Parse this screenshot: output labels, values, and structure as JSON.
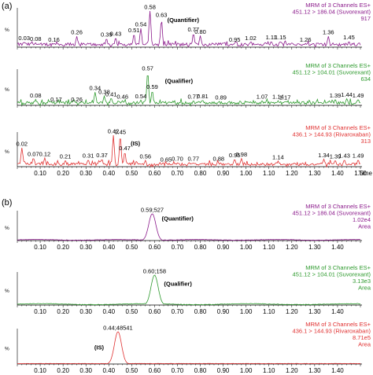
{
  "panel_labels": [
    "(a)",
    "(b)"
  ],
  "chart_data": [
    {
      "type": "line",
      "panel": "(a)",
      "annotation": "(Quantifier)",
      "color": "#8b1a8b",
      "header": [
        "MRM of 3 Channels ES+",
        "451.12 > 186.04 (Suvorexant)",
        "917"
      ],
      "ylabel": "%",
      "xlabel": "",
      "xlim": [
        0.0,
        1.5
      ],
      "ylim": [
        0,
        100
      ],
      "xticks": [],
      "peaks": [
        {
          "x": 0.03,
          "y": 14,
          "label": "0.03"
        },
        {
          "x": 0.08,
          "y": 12,
          "label": "0.08"
        },
        {
          "x": 0.16,
          "y": 10,
          "label": "0.16"
        },
        {
          "x": 0.26,
          "y": 30,
          "label": "0.26"
        },
        {
          "x": 0.39,
          "y": 24,
          "label": "0.39"
        },
        {
          "x": 0.43,
          "y": 26,
          "label": "0.43"
        },
        {
          "x": 0.51,
          "y": 36,
          "label": "0.51"
        },
        {
          "x": 0.54,
          "y": 52,
          "label": "0.54"
        },
        {
          "x": 0.58,
          "y": 100,
          "label": "0.58"
        },
        {
          "x": 0.63,
          "y": 78,
          "label": "0.63"
        },
        {
          "x": 0.77,
          "y": 38,
          "label": "0.77"
        },
        {
          "x": 0.8,
          "y": 32,
          "label": "0.80"
        },
        {
          "x": 0.95,
          "y": 10,
          "label": "0.95"
        },
        {
          "x": 1.02,
          "y": 14,
          "label": "1.02"
        },
        {
          "x": 1.11,
          "y": 16,
          "label": "1.11"
        },
        {
          "x": 1.15,
          "y": 16,
          "label": "1.15"
        },
        {
          "x": 1.26,
          "y": 10,
          "label": "1.26"
        },
        {
          "x": 1.36,
          "y": 30,
          "label": "1.36"
        },
        {
          "x": 1.45,
          "y": 16,
          "label": "1.45"
        }
      ]
    },
    {
      "type": "line",
      "panel": "(a)",
      "annotation": "(Qualifier)",
      "color": "#2e9a2e",
      "header": [
        "MRM of 3 Channels ES+",
        "451.12 > 104.01 (Suvorexant)",
        "634"
      ],
      "ylabel": "%",
      "xlabel": "",
      "xlim": [
        0.0,
        1.5
      ],
      "ylim": [
        0,
        100
      ],
      "xticks": [],
      "peaks": [
        {
          "x": 0.08,
          "y": 18,
          "label": "0.08"
        },
        {
          "x": 0.17,
          "y": 6,
          "label": "0.17"
        },
        {
          "x": 0.26,
          "y": 6,
          "label": "0.26"
        },
        {
          "x": 0.34,
          "y": 40,
          "label": "0.34"
        },
        {
          "x": 0.38,
          "y": 28,
          "label": "0.38"
        },
        {
          "x": 0.41,
          "y": 22,
          "label": "0.41"
        },
        {
          "x": 0.46,
          "y": 14,
          "label": "0.46"
        },
        {
          "x": 0.54,
          "y": 16,
          "label": "0.54"
        },
        {
          "x": 0.57,
          "y": 100,
          "label": "0.57"
        },
        {
          "x": 0.59,
          "y": 44,
          "label": "0.59"
        },
        {
          "x": 0.77,
          "y": 14,
          "label": "0.77"
        },
        {
          "x": 0.81,
          "y": 16,
          "label": "0.81"
        },
        {
          "x": 0.89,
          "y": 12,
          "label": "0.89"
        },
        {
          "x": 1.07,
          "y": 14,
          "label": "1.07"
        },
        {
          "x": 1.14,
          "y": 14,
          "label": "1.14"
        },
        {
          "x": 1.17,
          "y": 12,
          "label": "1.17"
        },
        {
          "x": 1.39,
          "y": 18,
          "label": "1.39"
        },
        {
          "x": 1.44,
          "y": 20,
          "label": "1.44"
        },
        {
          "x": 1.49,
          "y": 18,
          "label": "1.49"
        }
      ]
    },
    {
      "type": "line",
      "panel": "(a)",
      "annotation": "(IS)",
      "color": "#e03030",
      "header": [
        "MRM of 3 Channels ES+",
        "436.1 > 144.93 (Rivaroxaban)",
        "313"
      ],
      "ylabel": "%",
      "xlabel": "Time",
      "xlim": [
        0.0,
        1.5
      ],
      "ylim": [
        0,
        100
      ],
      "xticks": [
        "0.10",
        "0.20",
        "0.30",
        "0.40",
        "0.50",
        "0.60",
        "0.70",
        "0.80",
        "0.90",
        "1.00",
        "1.10",
        "1.20",
        "1.30",
        "1.40",
        "1.50"
      ],
      "peaks": [
        {
          "x": 0.02,
          "y": 60,
          "label": "0.02"
        },
        {
          "x": 0.07,
          "y": 28,
          "label": "0.07"
        },
        {
          "x": 0.12,
          "y": 28,
          "label": "0.12"
        },
        {
          "x": 0.21,
          "y": 20,
          "label": "0.21"
        },
        {
          "x": 0.31,
          "y": 22,
          "label": "0.31"
        },
        {
          "x": 0.37,
          "y": 24,
          "label": "0.37"
        },
        {
          "x": 0.42,
          "y": 100,
          "label": "0.42"
        },
        {
          "x": 0.45,
          "y": 98,
          "label": "0.45"
        },
        {
          "x": 0.47,
          "y": 46,
          "label": "0.47"
        },
        {
          "x": 0.56,
          "y": 20,
          "label": "0.56"
        },
        {
          "x": 0.65,
          "y": 10,
          "label": "0.65"
        },
        {
          "x": 0.7,
          "y": 12,
          "label": "0.70"
        },
        {
          "x": 0.77,
          "y": 12,
          "label": "0.77"
        },
        {
          "x": 0.88,
          "y": 12,
          "label": "0.88"
        },
        {
          "x": 0.95,
          "y": 24,
          "label": "0.95"
        },
        {
          "x": 0.98,
          "y": 26,
          "label": "0.98"
        },
        {
          "x": 1.14,
          "y": 18,
          "label": "1.14"
        },
        {
          "x": 1.34,
          "y": 24,
          "label": "1.34"
        },
        {
          "x": 1.39,
          "y": 20,
          "label": "1.39"
        },
        {
          "x": 1.43,
          "y": 22,
          "label": "1.43"
        },
        {
          "x": 1.49,
          "y": 22,
          "label": "1.49"
        }
      ]
    },
    {
      "type": "line",
      "panel": "(b)",
      "annotation": "(Quantifier)",
      "color": "#8b1a8b",
      "header": [
        "MRM of 3 Channels ES+",
        "451.12 > 186.04 (Suvorexant)",
        "1.02e4",
        "Area"
      ],
      "ylabel": "%",
      "xlabel": "",
      "xlim": [
        0.0,
        1.5
      ],
      "ylim": [
        0,
        100
      ],
      "xticks": [
        "0.10",
        "0.20",
        "0.30",
        "0.40",
        "0.50",
        "0.60",
        "0.70",
        "0.80",
        "0.90",
        "1.00",
        "1.10",
        "1.20",
        "1.30",
        "1.40"
      ],
      "peaks": [
        {
          "x": 0.59,
          "y": 100,
          "label": "0.59;527"
        }
      ]
    },
    {
      "type": "line",
      "panel": "(b)",
      "annotation": "(Qualifier)",
      "color": "#2e9a2e",
      "header": [
        "MRM of 3 Channels ES+",
        "451.12 > 104.01 (Suvorexant)",
        "3.13e3",
        "Area"
      ],
      "ylabel": "%",
      "xlabel": "",
      "xlim": [
        0.0,
        1.5
      ],
      "ylim": [
        0,
        100
      ],
      "xticks": [
        "0.10",
        "0.20",
        "0.30",
        "0.40",
        "0.50",
        "0.60",
        "0.70",
        "0.80",
        "0.90",
        "1.00",
        "1.10",
        "1.20",
        "1.30",
        "1.40"
      ],
      "peaks": [
        {
          "x": 0.6,
          "y": 100,
          "label": "0.60;158"
        }
      ]
    },
    {
      "type": "line",
      "panel": "(b)",
      "annotation": "(IS)",
      "color": "#e03030",
      "header": [
        "MRM of 3 Channels ES+",
        "436.1 > 144.93 (Rivaroxaban)",
        "8.71e5",
        "Area"
      ],
      "ylabel": "%",
      "xlabel": "",
      "xlim": [
        0.0,
        1.5
      ],
      "ylim": [
        0,
        100
      ],
      "xticks": [
        "0.10",
        "0.20",
        "0.30",
        "0.40",
        "0.50",
        "0.60",
        "0.70",
        "0.80",
        "0.90",
        "1.00",
        "1.10",
        "1.20",
        "1.30",
        "1.40"
      ],
      "peaks": [
        {
          "x": 0.44,
          "y": 100,
          "label": "0.44;48541"
        }
      ]
    }
  ]
}
